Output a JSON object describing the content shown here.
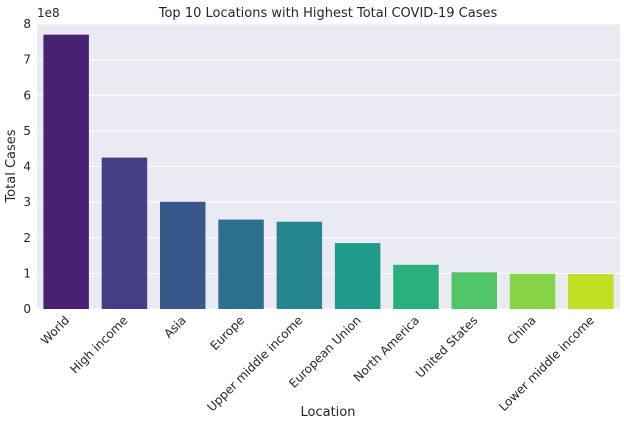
{
  "chart_data": {
    "type": "bar",
    "title": "Top 10 Locations with Highest Total COVID-19 Cases",
    "xlabel": "Location",
    "ylabel": "Total Cases",
    "y_offset_label": "1e8",
    "ylim": [
      0,
      8
    ],
    "yticks": [
      "0",
      "1",
      "2",
      "3",
      "4",
      "5",
      "6",
      "7",
      "8"
    ],
    "grid": true,
    "categories": [
      "World",
      "High income",
      "Asia",
      "Europe",
      "Upper middle income",
      "European Union",
      "North America",
      "United States",
      "China",
      "Lower middle income"
    ],
    "values": [
      7.7,
      4.25,
      3.01,
      2.51,
      2.45,
      1.85,
      1.24,
      1.03,
      0.99,
      0.98
    ],
    "colors": [
      "#482173",
      "#433e85",
      "#38588c",
      "#2d708e",
      "#25858e",
      "#1e9b8a",
      "#2ab07f",
      "#52c569",
      "#86d549",
      "#c2df23"
    ],
    "background": "#eaeaf2"
  }
}
